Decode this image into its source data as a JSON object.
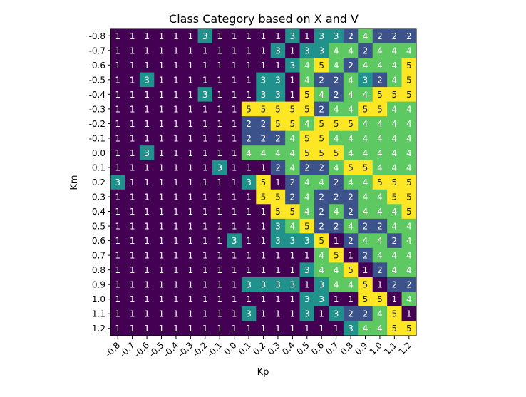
{
  "chart_data": {
    "type": "heatmap",
    "title": "Class Category based on X and V",
    "xlabel": "Kp",
    "ylabel": "Km",
    "x_ticks": [
      "-0.8",
      "-0.7",
      "-0.6",
      "-0.5",
      "-0.4",
      "-0.3",
      "-0.2",
      "-0.1",
      "0.0",
      "0.1",
      "0.2",
      "0.3",
      "0.4",
      "0.5",
      "0.6",
      "0.7",
      "0.8",
      "0.9",
      "1.0",
      "1.1",
      "1.2"
    ],
    "y_ticks": [
      "-0.8",
      "-0.7",
      "-0.6",
      "-0.5",
      "-0.4",
      "-0.3",
      "-0.2",
      "-0.1",
      "0.0",
      "0.1",
      "0.2",
      "0.3",
      "0.4",
      "0.5",
      "0.6",
      "0.7",
      "0.8",
      "0.9",
      "1.0",
      "1.1",
      "1.2"
    ],
    "values": [
      [
        1,
        1,
        1,
        1,
        1,
        1,
        3,
        1,
        1,
        1,
        1,
        1,
        3,
        1,
        3,
        3,
        2,
        4,
        2,
        2,
        2
      ],
      [
        1,
        1,
        1,
        1,
        1,
        1,
        1,
        1,
        1,
        1,
        1,
        3,
        1,
        3,
        3,
        4,
        4,
        2,
        4,
        4,
        4
      ],
      [
        1,
        1,
        1,
        1,
        1,
        1,
        1,
        1,
        1,
        1,
        1,
        1,
        3,
        4,
        5,
        4,
        2,
        4,
        4,
        4,
        5
      ],
      [
        1,
        1,
        3,
        1,
        1,
        1,
        1,
        1,
        1,
        1,
        3,
        3,
        1,
        4,
        2,
        2,
        4,
        3,
        2,
        4,
        5
      ],
      [
        1,
        1,
        1,
        1,
        1,
        1,
        3,
        1,
        1,
        1,
        3,
        3,
        1,
        5,
        4,
        2,
        4,
        4,
        5,
        5,
        5
      ],
      [
        1,
        1,
        1,
        1,
        1,
        1,
        1,
        1,
        1,
        5,
        5,
        5,
        5,
        5,
        2,
        4,
        4,
        5,
        5,
        4,
        4
      ],
      [
        1,
        1,
        1,
        1,
        1,
        1,
        1,
        1,
        1,
        2,
        2,
        5,
        5,
        4,
        5,
        5,
        5,
        4,
        4,
        4,
        4
      ],
      [
        1,
        1,
        1,
        1,
        1,
        1,
        1,
        1,
        1,
        2,
        2,
        2,
        4,
        5,
        5,
        4,
        4,
        4,
        4,
        4,
        4
      ],
      [
        1,
        1,
        3,
        1,
        1,
        1,
        1,
        1,
        1,
        4,
        4,
        4,
        4,
        5,
        5,
        5,
        4,
        4,
        4,
        4,
        4
      ],
      [
        1,
        1,
        1,
        1,
        1,
        1,
        1,
        3,
        1,
        1,
        1,
        2,
        4,
        2,
        2,
        4,
        5,
        5,
        4,
        4,
        4
      ],
      [
        3,
        1,
        1,
        1,
        1,
        1,
        1,
        1,
        1,
        3,
        5,
        1,
        2,
        4,
        4,
        2,
        4,
        4,
        5,
        5,
        5
      ],
      [
        1,
        1,
        1,
        1,
        1,
        1,
        1,
        1,
        1,
        1,
        5,
        5,
        2,
        4,
        2,
        2,
        2,
        4,
        4,
        5,
        5
      ],
      [
        1,
        1,
        1,
        1,
        1,
        1,
        1,
        1,
        1,
        1,
        1,
        5,
        5,
        4,
        2,
        4,
        2,
        4,
        4,
        4,
        5
      ],
      [
        1,
        1,
        1,
        1,
        1,
        1,
        1,
        1,
        1,
        1,
        1,
        3,
        4,
        5,
        2,
        2,
        4,
        2,
        2,
        4,
        4
      ],
      [
        1,
        1,
        1,
        1,
        1,
        1,
        1,
        1,
        3,
        1,
        1,
        3,
        3,
        3,
        5,
        1,
        2,
        4,
        4,
        2,
        4
      ],
      [
        1,
        1,
        1,
        1,
        1,
        1,
        1,
        1,
        1,
        1,
        1,
        1,
        1,
        1,
        4,
        5,
        1,
        2,
        4,
        4,
        4
      ],
      [
        1,
        1,
        1,
        1,
        1,
        1,
        1,
        1,
        1,
        1,
        1,
        1,
        1,
        3,
        4,
        4,
        5,
        1,
        2,
        4,
        4
      ],
      [
        1,
        1,
        1,
        1,
        1,
        1,
        1,
        1,
        1,
        3,
        3,
        3,
        3,
        1,
        3,
        4,
        4,
        5,
        1,
        2,
        2
      ],
      [
        1,
        1,
        1,
        1,
        1,
        1,
        1,
        1,
        1,
        1,
        1,
        1,
        1,
        3,
        3,
        1,
        1,
        5,
        5,
        1,
        4
      ],
      [
        1,
        1,
        1,
        1,
        1,
        1,
        1,
        1,
        1,
        3,
        1,
        1,
        1,
        3,
        1,
        3,
        2,
        2,
        4,
        5,
        1
      ],
      [
        1,
        1,
        1,
        1,
        1,
        1,
        1,
        1,
        1,
        1,
        1,
        1,
        1,
        1,
        1,
        1,
        3,
        4,
        4,
        5,
        5
      ]
    ],
    "colormap": {
      "1": "#440154",
      "2": "#3b528b",
      "3": "#21918c",
      "4": "#5ec962",
      "5": "#fde725"
    },
    "label_colors": {
      "dark": "#ffffff",
      "light": "#222222"
    }
  }
}
